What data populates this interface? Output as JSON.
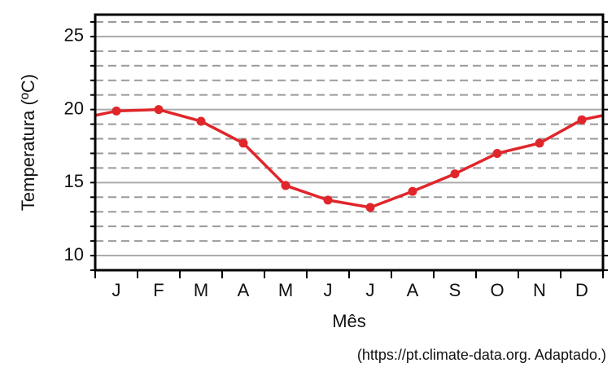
{
  "chart_data": {
    "type": "line",
    "categories": [
      "J",
      "F",
      "M",
      "A",
      "M",
      "J",
      "J",
      "A",
      "S",
      "O",
      "N",
      "D"
    ],
    "values": [
      19.9,
      20.0,
      19.2,
      17.7,
      14.8,
      13.8,
      13.3,
      14.4,
      15.6,
      17.0,
      17.7,
      19.3
    ],
    "xlabel": "Mês",
    "ylabel": "Temperatura (ºC)",
    "ylim": [
      9,
      26.5
    ],
    "yticks": [
      10,
      15,
      20,
      25
    ],
    "grid": "major solid, minor dashed every 1 ºC",
    "line_color": "#e0262b",
    "source": "(https://pt.climate-data.org. Adaptado.)"
  }
}
